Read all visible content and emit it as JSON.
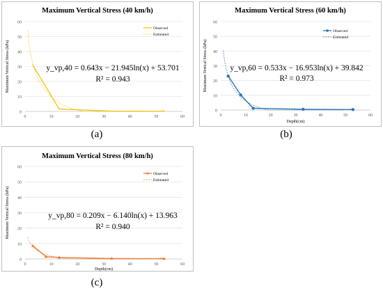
{
  "chart_data": [
    {
      "type": "line",
      "title": "Maximum Vertical Stress (40 km/h)",
      "xlabel": "",
      "ylabel": "Maximum Vertical Stress (kPa)",
      "xlim": [
        0,
        60
      ],
      "ylim": [
        0,
        60
      ],
      "xticks": [
        "0",
        "10",
        "20",
        "30",
        "40",
        "50",
        "60"
      ],
      "yticks": [
        "0",
        "10",
        "20",
        "30",
        "40",
        "50",
        "60"
      ],
      "legend_position": "top-right",
      "series": [
        {
          "name": "Observed",
          "x": [
            3,
            13,
            33,
            53
          ],
          "y": [
            30.8,
            1.6,
            0.2,
            0.1
          ]
        },
        {
          "name": "Estimated",
          "function": "0.643x-21.945ln(x)+53.701"
        }
      ],
      "equation": "y_vp,40 = 0.643x − 21.945ln(x) + 53.701",
      "r2": "R² = 0.943",
      "caption": "(a)",
      "color": "#f2c418"
    },
    {
      "type": "line",
      "title": "Maximum Vertical Stress (60 km/h)",
      "xlabel": "Depth(cm)",
      "ylabel": "Maximum Vertical Stress (kPa)",
      "xlim": [
        0,
        60
      ],
      "ylim": [
        0,
        60
      ],
      "xticks": [
        "0",
        "10",
        "20",
        "30",
        "40",
        "50",
        "60"
      ],
      "yticks": [
        "0",
        "10",
        "20",
        "30",
        "40",
        "50",
        "60"
      ],
      "legend_position": "top-right",
      "series": [
        {
          "name": "Observed",
          "x": [
            3,
            8,
            13,
            33,
            53
          ],
          "y": [
            23,
            10.2,
            1.2,
            0.5,
            0.3
          ]
        },
        {
          "name": "Estimated",
          "function": "0.533x-16.953ln(x)+39.842"
        }
      ],
      "equation": "y_vp,60 = 0.533x − 16.953ln(x) + 39.842",
      "r2": "R² = 0.973",
      "caption": "(b)",
      "color": "#2e75b6"
    },
    {
      "type": "line",
      "title": "Maximum Vertical Stress (80 km/h)",
      "xlabel": "Depth(cm)",
      "ylabel": "Maximum Vertical Stress (kPa)",
      "xlim": [
        0,
        60
      ],
      "ylim": [
        0,
        60
      ],
      "xticks": [
        "0",
        "10",
        "20",
        "30",
        "40",
        "50",
        "60"
      ],
      "yticks": [
        "0",
        "10",
        "20",
        "30",
        "40",
        "50",
        "60"
      ],
      "legend_position": "top-right",
      "series": [
        {
          "name": "Observed",
          "x": [
            3,
            8,
            13,
            33,
            53
          ],
          "y": [
            8.5,
            1.5,
            1.0,
            0.3,
            0.2
          ]
        },
        {
          "name": "Estimated",
          "function": "0.209x-6.140ln(x)+13.963"
        }
      ],
      "equation": "y_vp,80 = 0.209x − 6.140ln(x) + 13.963",
      "r2": "R² = 0.940",
      "caption": "(c)",
      "color": "#ed7d31"
    }
  ]
}
